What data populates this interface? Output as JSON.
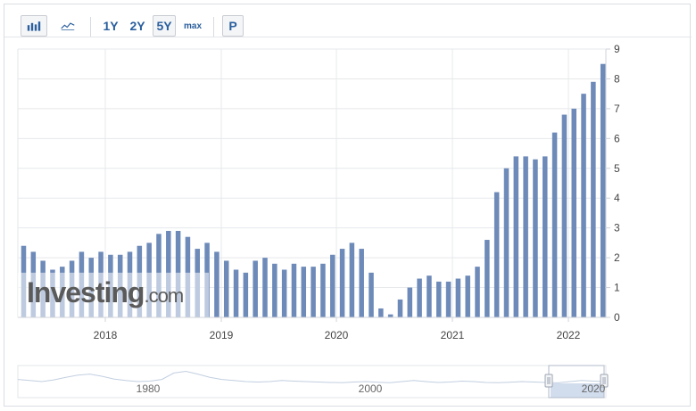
{
  "toolbar": {
    "bar_chart_icon": "bar-chart-icon",
    "line_chart_icon": "line-chart-icon",
    "range_1y": "1Y",
    "range_2y": "2Y",
    "range_5y": "5Y",
    "range_max": "max",
    "active_range": "5Y",
    "p_button": "P"
  },
  "watermark": {
    "brand": "Investing",
    "suffix": ".com"
  },
  "colors": {
    "bar": "#6d8ab8",
    "accent": "#2b5f9e",
    "grid": "#e6e8eb",
    "navigator_fill": "#c5d3e8"
  },
  "chart_data": {
    "type": "bar",
    "x_tick_labels": [
      "2018",
      "2019",
      "2020",
      "2021",
      "2022"
    ],
    "y_tick_labels": [
      "0",
      "1",
      "2",
      "3",
      "4",
      "5",
      "6",
      "7",
      "8",
      "9"
    ],
    "ylim": [
      0,
      9
    ],
    "y_axis_side": "right",
    "grid": true,
    "series": [
      {
        "values": [
          2.4,
          2.2,
          1.9,
          1.6,
          1.7,
          1.9,
          2.2,
          2.0,
          2.2,
          2.1,
          2.1,
          2.2,
          2.4,
          2.5,
          2.8,
          2.9,
          2.9,
          2.7,
          2.3,
          2.5,
          2.2,
          1.9,
          1.6,
          1.5,
          1.9,
          2.0,
          1.8,
          1.6,
          1.8,
          1.7,
          1.7,
          1.8,
          2.1,
          2.3,
          2.5,
          2.3,
          1.5,
          0.3,
          0.1,
          0.6,
          1.0,
          1.3,
          1.4,
          1.2,
          1.2,
          1.3,
          1.4,
          1.7,
          2.6,
          4.2,
          5.0,
          5.4,
          5.4,
          5.3,
          5.4,
          6.2,
          6.8,
          7.0,
          7.5,
          7.9,
          8.5
        ]
      }
    ],
    "navigator": {
      "x_tick_labels": [
        "1980",
        "2000",
        "2020"
      ],
      "selected_range": [
        "2017",
        "2022"
      ]
    }
  }
}
